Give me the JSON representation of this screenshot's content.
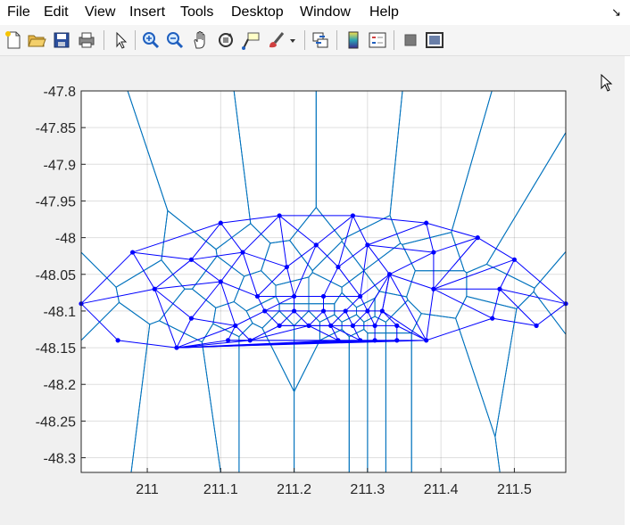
{
  "menu": {
    "items": [
      "File",
      "Edit",
      "View",
      "Insert",
      "Tools",
      "Desktop",
      "Window",
      "Help"
    ],
    "expand_icon": "dock-arrow-icon"
  },
  "toolbar": {
    "buttons": [
      "new-figure-icon",
      "open-file-icon",
      "save-icon",
      "print-icon",
      "edit-plot-arrow-icon",
      "zoom-in-icon",
      "zoom-out-icon",
      "pan-hand-icon",
      "rotate-3d-icon",
      "data-cursor-icon",
      "brush-icon",
      "brush-dropdown-icon",
      "link-plot-icon",
      "insert-colorbar-icon",
      "insert-legend-icon",
      "hide-plot-tools-icon",
      "show-plot-tools-icon"
    ]
  },
  "colors": {
    "delaunay": "#0000ff",
    "voronoi": "#0072bd",
    "node": "#0000ff",
    "axes_bg": "#ffffff",
    "figure_bg": "#f0f0f0"
  },
  "chart_data": {
    "type": "scatter",
    "title": "",
    "xlabel": "",
    "ylabel": "",
    "xlim": [
      210.91,
      211.57
    ],
    "ylim": [
      -48.32,
      -47.8
    ],
    "grid": true,
    "x_ticks": [
      "211",
      "211.1",
      "211.2",
      "211.3",
      "211.4",
      "211.5"
    ],
    "y_ticks": [
      "-47.8",
      "-47.85",
      "-47.9",
      "-47.95",
      "-48",
      "-48.05",
      "-48.1",
      "-48.15",
      "-48.2",
      "-48.25",
      "-48.3"
    ],
    "series": [
      {
        "kind": "triangulation-nodes",
        "points": [
          [
            210.91,
            -48.09
          ],
          [
            210.96,
            -48.14
          ],
          [
            210.98,
            -48.02
          ],
          [
            211.01,
            -48.07
          ],
          [
            211.04,
            -48.15
          ],
          [
            211.06,
            -48.03
          ],
          [
            211.06,
            -48.11
          ],
          [
            211.1,
            -47.98
          ],
          [
            211.1,
            -48.06
          ],
          [
            211.13,
            -48.02
          ],
          [
            211.11,
            -48.14
          ],
          [
            211.12,
            -48.12
          ],
          [
            211.14,
            -48.14
          ],
          [
            211.15,
            -48.08
          ],
          [
            211.16,
            -48.1
          ],
          [
            211.18,
            -47.97
          ],
          [
            211.19,
            -48.04
          ],
          [
            211.18,
            -48.12
          ],
          [
            211.2,
            -48.08
          ],
          [
            211.2,
            -48.1
          ],
          [
            211.22,
            -48.12
          ],
          [
            211.23,
            -48.01
          ],
          [
            211.24,
            -48.08
          ],
          [
            211.24,
            -48.1
          ],
          [
            211.25,
            -48.12
          ],
          [
            211.26,
            -48.04
          ],
          [
            211.28,
            -47.97
          ],
          [
            211.26,
            -48.14
          ],
          [
            211.27,
            -48.1
          ],
          [
            211.28,
            -48.12
          ],
          [
            211.29,
            -48.08
          ],
          [
            211.29,
            -48.14
          ],
          [
            211.3,
            -48.01
          ],
          [
            211.3,
            -48.1
          ],
          [
            211.31,
            -48.12
          ],
          [
            211.31,
            -48.14
          ],
          [
            211.32,
            -48.1
          ],
          [
            211.33,
            -48.05
          ],
          [
            211.34,
            -48.14
          ],
          [
            211.34,
            -48.12
          ],
          [
            211.38,
            -47.98
          ],
          [
            211.39,
            -48.02
          ],
          [
            211.39,
            -48.07
          ],
          [
            211.38,
            -48.14
          ],
          [
            211.45,
            -48.0
          ],
          [
            211.47,
            -48.11
          ],
          [
            211.48,
            -48.07
          ],
          [
            211.5,
            -48.03
          ],
          [
            211.53,
            -48.12
          ],
          [
            211.57,
            -48.09
          ]
        ]
      },
      {
        "kind": "delaunay-edges",
        "edges": [
          [
            0,
            2
          ],
          [
            2,
            7
          ],
          [
            7,
            15
          ],
          [
            15,
            26
          ],
          [
            26,
            40
          ],
          [
            40,
            44
          ],
          [
            44,
            47
          ],
          [
            47,
            49
          ],
          [
            49,
            48
          ],
          [
            48,
            45
          ],
          [
            45,
            43
          ],
          [
            43,
            38
          ],
          [
            38,
            4
          ],
          [
            4,
            1
          ],
          [
            1,
            0
          ],
          [
            0,
            3
          ],
          [
            3,
            4
          ],
          [
            2,
            3
          ],
          [
            2,
            5
          ],
          [
            5,
            3
          ],
          [
            5,
            7
          ],
          [
            7,
            9
          ],
          [
            9,
            15
          ],
          [
            5,
            9
          ],
          [
            5,
            8
          ],
          [
            8,
            9
          ],
          [
            3,
            8
          ],
          [
            8,
            6
          ],
          [
            6,
            4
          ],
          [
            3,
            6
          ],
          [
            6,
            11
          ],
          [
            11,
            4
          ],
          [
            8,
            11
          ],
          [
            8,
            13
          ],
          [
            9,
            13
          ],
          [
            9,
            16
          ],
          [
            15,
            16
          ],
          [
            15,
            21
          ],
          [
            21,
            26
          ],
          [
            16,
            21
          ],
          [
            16,
            13
          ],
          [
            16,
            18
          ],
          [
            18,
            13
          ],
          [
            21,
            25
          ],
          [
            25,
            26
          ],
          [
            26,
            32
          ],
          [
            32,
            40
          ],
          [
            32,
            41
          ],
          [
            40,
            41
          ],
          [
            41,
            44
          ],
          [
            25,
            32
          ],
          [
            21,
            18
          ],
          [
            18,
            22
          ],
          [
            22,
            25
          ],
          [
            25,
            30
          ],
          [
            30,
            32
          ],
          [
            32,
            37
          ],
          [
            37,
            41
          ],
          [
            41,
            42
          ],
          [
            42,
            44
          ],
          [
            42,
            47
          ],
          [
            47,
            46
          ],
          [
            46,
            49
          ],
          [
            46,
            48
          ],
          [
            45,
            46
          ],
          [
            42,
            46
          ],
          [
            42,
            45
          ],
          [
            42,
            43
          ],
          [
            37,
            42
          ],
          [
            37,
            43
          ],
          [
            30,
            37
          ],
          [
            37,
            36
          ],
          [
            36,
            43
          ],
          [
            11,
            12
          ],
          [
            12,
            4
          ],
          [
            11,
            10
          ],
          [
            10,
            4
          ],
          [
            13,
            14
          ],
          [
            14,
            11
          ],
          [
            14,
            17
          ],
          [
            17,
            12
          ],
          [
            14,
            19
          ],
          [
            19,
            17
          ],
          [
            17,
            20
          ],
          [
            19,
            20
          ],
          [
            19,
            23
          ],
          [
            23,
            20
          ],
          [
            20,
            24
          ],
          [
            23,
            24
          ],
          [
            23,
            28
          ],
          [
            28,
            24
          ],
          [
            24,
            29
          ],
          [
            28,
            29
          ],
          [
            28,
            33
          ],
          [
            33,
            29
          ],
          [
            29,
            34
          ],
          [
            33,
            34
          ],
          [
            33,
            36
          ],
          [
            36,
            34
          ],
          [
            34,
            39
          ],
          [
            36,
            39
          ],
          [
            39,
            38
          ],
          [
            38,
            35
          ],
          [
            35,
            34
          ],
          [
            35,
            31
          ],
          [
            31,
            29
          ],
          [
            31,
            27
          ],
          [
            27,
            24
          ],
          [
            27,
            20
          ],
          [
            20,
            12
          ],
          [
            12,
            10
          ],
          [
            10,
            27
          ],
          [
            27,
            31
          ],
          [
            31,
            38
          ],
          [
            18,
            19
          ],
          [
            22,
            23
          ],
          [
            30,
            33
          ],
          [
            13,
            18
          ],
          [
            22,
            30
          ],
          [
            18,
            22
          ],
          [
            14,
            18
          ],
          [
            23,
            22
          ],
          [
            28,
            30
          ],
          [
            33,
            37
          ],
          [
            36,
            37
          ],
          [
            39,
            43
          ],
          [
            4,
            27
          ],
          [
            4,
            31
          ],
          [
            4,
            35
          ],
          [
            4,
            38
          ],
          [
            4,
            43
          ],
          [
            17,
            24
          ],
          [
            24,
            31
          ],
          [
            12,
            27
          ],
          [
            10,
            12
          ]
        ]
      }
    ]
  }
}
